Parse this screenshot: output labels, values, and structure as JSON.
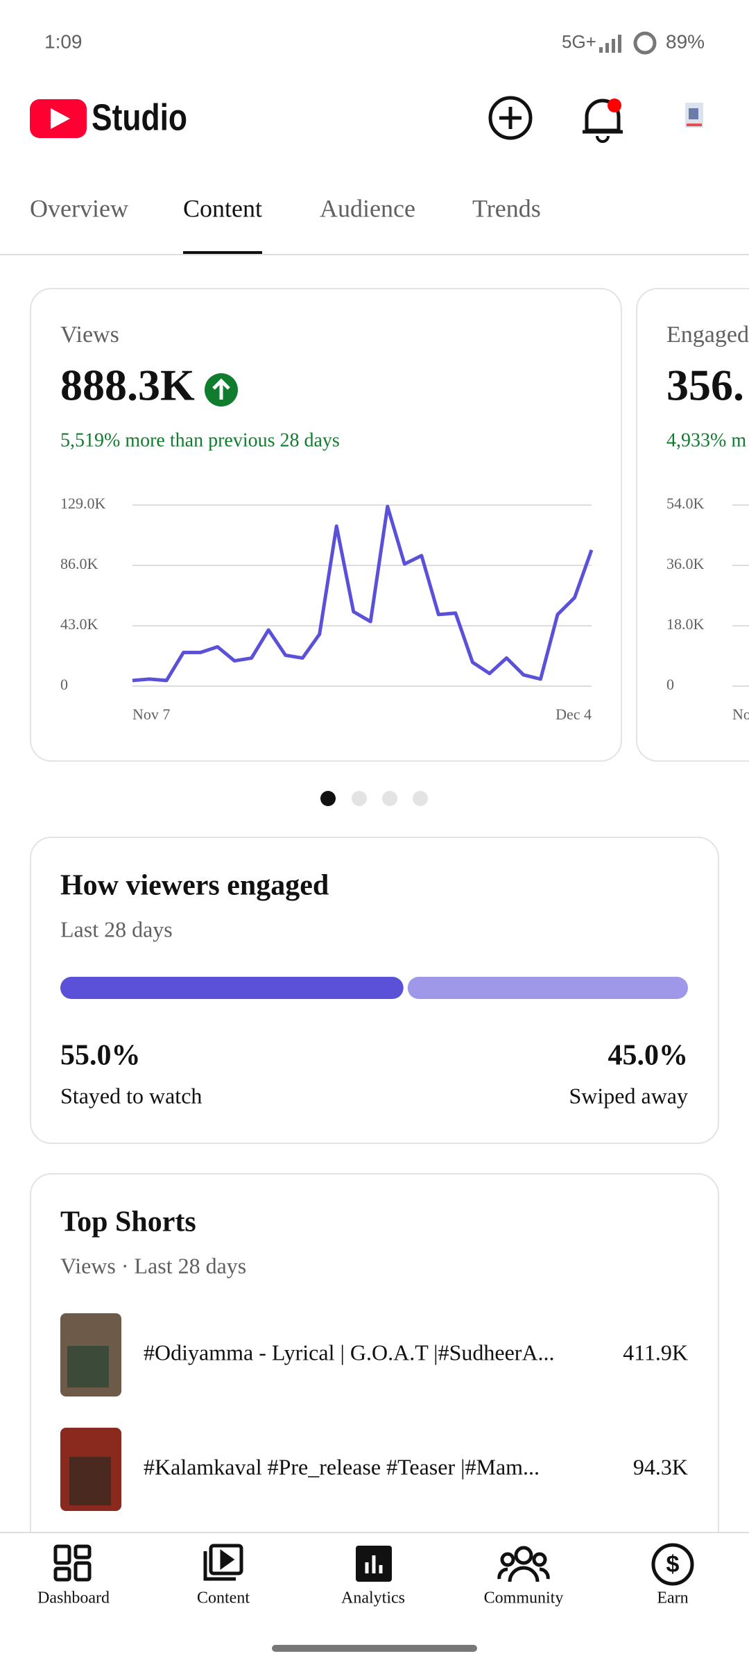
{
  "status_bar": {
    "time": "1:09",
    "network": "5G+",
    "battery": "89%"
  },
  "header": {
    "app_name": "Studio"
  },
  "tabs": {
    "items": [
      "Overview",
      "Content",
      "Audience",
      "Trends"
    ],
    "active": 1
  },
  "views_card": {
    "label": "Views",
    "total": "888.3K",
    "change": "5,519% more than previous 28 days",
    "chart": {
      "type": "line",
      "color": "#5b51d8",
      "grid": true,
      "x": [
        "Nov 7",
        null,
        null,
        null,
        null,
        null,
        null,
        null,
        null,
        null,
        null,
        null,
        null,
        null,
        null,
        null,
        null,
        null,
        null,
        null,
        null,
        null,
        null,
        null,
        null,
        null,
        null,
        "Dec 4"
      ],
      "values": [
        4000,
        5000,
        4000,
        24000,
        24000,
        28000,
        18000,
        20000,
        40000,
        22000,
        20000,
        37000,
        114000,
        53000,
        46000,
        128000,
        87000,
        93000,
        51000,
        52000,
        17000,
        9000,
        20000,
        8000,
        5000,
        51000,
        63000,
        97000
      ],
      "ylim": [
        0,
        129000
      ],
      "yticks": [
        0,
        {
          "value": 43000,
          "label": "43.0K"
        },
        {
          "value": 86000,
          "label": "86.0K"
        },
        {
          "value": 129000,
          "label": "129.0K"
        }
      ]
    }
  },
  "second_card": {
    "label": "Engaged",
    "total": "356.",
    "change": "4,933% m",
    "chart": {
      "ylim": [
        0,
        54000
      ],
      "yticks": [
        0,
        {
          "value": 18000,
          "label": "18.0K"
        },
        {
          "value": 36000,
          "label": "36.0K"
        },
        {
          "value": 54000,
          "label": "54.0K"
        }
      ],
      "x_start": "No"
    }
  },
  "engagement": {
    "title": "How viewers engaged",
    "subtitle": "Last 28 days",
    "names": [
      "Stayed to watch",
      "Swiped away"
    ],
    "values": [
      55.0,
      45.0
    ],
    "value_labels": [
      "55.0%",
      "45.0%"
    ],
    "colors": [
      "#5b51d8",
      "#9f98e8"
    ]
  },
  "top_shorts": {
    "title": "Top Shorts",
    "subtitle": "Views · Last 28 days",
    "rows": [
      {
        "title": "#Odiyamma - Lyrical | G.O.A.T |#SudheerA...",
        "views": "411.9K"
      },
      {
        "title": "#Kalamkaval #Pre_release #Teaser |#Mam...",
        "views": "94.3K"
      }
    ]
  },
  "bottom_nav": {
    "items": [
      "Dashboard",
      "Content",
      "Analytics",
      "Community",
      "Earn"
    ]
  }
}
